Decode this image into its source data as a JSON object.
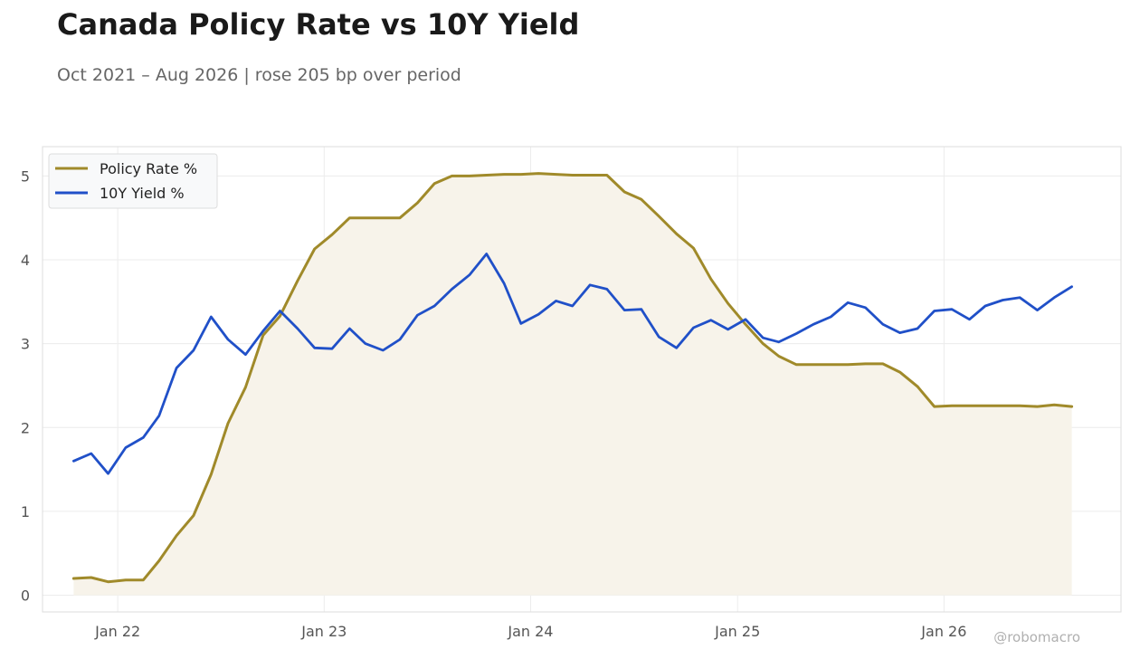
{
  "header": {
    "title": "Canada Policy Rate vs 10Y Yield",
    "subtitle": "Oct 2021 – Aug 2026 | rose 205 bp over period"
  },
  "watermark": "@robomacro",
  "colors": {
    "policy": "#a08a2a",
    "policy_fill": "#f7f3ea",
    "yield": "#2050c8",
    "grid": "#ececec",
    "frame": "#dddddd"
  },
  "chart_data": {
    "type": "line",
    "x": [
      "2021-10",
      "2021-11",
      "2021-12",
      "2022-01",
      "2022-02",
      "2022-03",
      "2022-04",
      "2022-05",
      "2022-06",
      "2022-07",
      "2022-08",
      "2022-09",
      "2022-10",
      "2022-11",
      "2022-12",
      "2023-01",
      "2023-02",
      "2023-03",
      "2023-04",
      "2023-05",
      "2023-06",
      "2023-07",
      "2023-08",
      "2023-09",
      "2023-10",
      "2023-11",
      "2023-12",
      "2024-01",
      "2024-02",
      "2024-03",
      "2024-04",
      "2024-05",
      "2024-06",
      "2024-07",
      "2024-08",
      "2024-09",
      "2024-10",
      "2024-11",
      "2024-12",
      "2025-01",
      "2025-02",
      "2025-03",
      "2025-04",
      "2025-05",
      "2025-06",
      "2025-07",
      "2025-08",
      "2025-09",
      "2025-10",
      "2025-11",
      "2025-12",
      "2026-01",
      "2026-02",
      "2026-03",
      "2026-04",
      "2026-05",
      "2026-06",
      "2026-07",
      "2026-08"
    ],
    "series": [
      {
        "name": "Policy Rate %",
        "values": [
          0.2,
          0.21,
          0.16,
          0.18,
          0.18,
          0.41,
          0.71,
          0.95,
          1.44,
          2.05,
          2.48,
          3.1,
          3.33,
          3.75,
          4.13,
          4.3,
          4.5,
          4.5,
          4.5,
          4.5,
          4.68,
          4.91,
          5.0,
          5.0,
          5.01,
          5.02,
          5.02,
          5.03,
          5.02,
          5.01,
          5.01,
          5.01,
          4.81,
          4.72,
          4.52,
          4.31,
          4.14,
          3.77,
          3.48,
          3.23,
          3.0,
          2.85,
          2.75,
          2.75,
          2.75,
          2.75,
          2.76,
          2.76,
          2.66,
          2.49,
          2.25,
          2.26,
          2.26,
          2.26,
          2.26,
          2.26,
          2.25,
          2.27,
          2.25
        ]
      },
      {
        "name": "10Y Yield %",
        "values": [
          1.6,
          1.69,
          1.45,
          1.76,
          1.88,
          2.14,
          2.71,
          2.92,
          3.32,
          3.05,
          2.87,
          3.15,
          3.39,
          3.18,
          2.95,
          2.94,
          3.18,
          3.0,
          2.92,
          3.05,
          3.34,
          3.45,
          3.65,
          3.82,
          4.07,
          3.72,
          3.24,
          3.35,
          3.51,
          3.45,
          3.7,
          3.65,
          3.4,
          3.41,
          3.08,
          2.95,
          3.19,
          3.28,
          3.17,
          3.29,
          3.07,
          3.02,
          3.12,
          3.23,
          3.32,
          3.49,
          3.43,
          3.23,
          3.13,
          3.18,
          3.39,
          3.41,
          3.29,
          3.45,
          3.52,
          3.55,
          3.4,
          3.55,
          3.68
        ]
      }
    ],
    "x_ticks": [
      {
        "date": "2022-01",
        "label": "Jan 22"
      },
      {
        "date": "2023-01",
        "label": "Jan 23"
      },
      {
        "date": "2024-01",
        "label": "Jan 24"
      },
      {
        "date": "2025-01",
        "label": "Jan 25"
      },
      {
        "date": "2026-01",
        "label": "Jan 26"
      }
    ],
    "y_ticks": [
      0,
      1,
      2,
      3,
      4,
      5
    ],
    "ylim": [
      -0.2,
      5.35
    ],
    "xlim": [
      "2021-08-21",
      "2026-11-10"
    ],
    "grid": true,
    "legend_position": "top-left",
    "area_under_series": "Policy Rate %"
  }
}
